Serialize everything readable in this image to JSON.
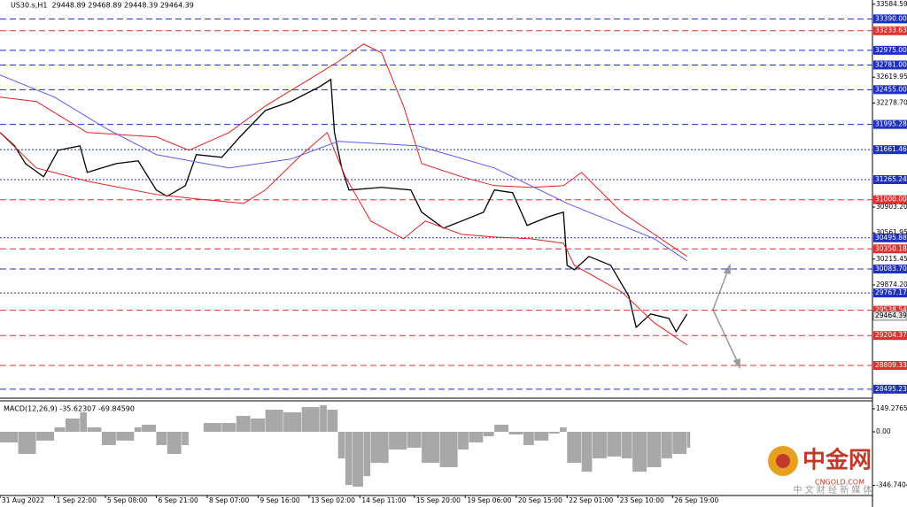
{
  "chart_data": [
    {
      "type": "line",
      "title": "US30.s,H1  29448.89 29468.89 29448.39 29464.39",
      "xlim": [
        0,
        240
      ],
      "ylim": [
        28400,
        33640
      ],
      "xticks": [
        {
          "value": 0,
          "label": "31 Aug 2022"
        },
        {
          "value": 15,
          "label": "1 Sep 22:00"
        },
        {
          "value": 29,
          "label": "5 Sep 08:00"
        },
        {
          "value": 43,
          "label": "6 Sep 21:00"
        },
        {
          "value": 57,
          "label": "8 Sep 07:00"
        },
        {
          "value": 71,
          "label": "9 Sep 16:00"
        },
        {
          "value": 85,
          "label": "13 Sep 02:00"
        },
        {
          "value": 99,
          "label": "14 Sep 11:00"
        },
        {
          "value": 114,
          "label": "15 Sep 20:00"
        },
        {
          "value": 128,
          "label": "19 Sep 06:00"
        },
        {
          "value": 142,
          "label": "20 Sep 15:00"
        },
        {
          "value": 156,
          "label": "22 Sep 01:00"
        },
        {
          "value": 170,
          "label": "23 Sep 10:00"
        },
        {
          "value": 185,
          "label": "26 Sep 19:00"
        }
      ],
      "yticks": [
        {
          "value": 33584.59,
          "label": "33584.59"
        },
        {
          "value": 32619.95,
          "label": "32619.95"
        },
        {
          "value": 32278.7,
          "label": "32278.70"
        },
        {
          "value": 30903.2,
          "label": "30903.20"
        },
        {
          "value": 30561.95,
          "label": "30561.95"
        },
        {
          "value": 30215.45,
          "label": "30215.45"
        },
        {
          "value": 29874.2,
          "label": "29874.20"
        }
      ],
      "levels": [
        {
          "value": 33390,
          "label": "33390.00",
          "color": "#1f2fbf",
          "style": "dashed"
        },
        {
          "value": 33233.63,
          "label": "33233.63",
          "color": "#e03030",
          "style": "dashed"
        },
        {
          "value": 32975,
          "label": "32975.00",
          "color": "#1f2fbf",
          "style": "dashed"
        },
        {
          "value": 32781,
          "label": "32781.00",
          "color": "#1f2fbf",
          "style": "dashed"
        },
        {
          "value": 32455,
          "label": "32455.00",
          "color": "#1f2fbf",
          "style": "dashed"
        },
        {
          "value": 31995.28,
          "label": "31995.28",
          "color": "#1f2fbf",
          "style": "dashed"
        },
        {
          "value": 31661.46,
          "label": "31661.46",
          "color": "#1f2fbf",
          "style": "dotted"
        },
        {
          "value": 31265.24,
          "label": "31265.24",
          "color": "#1f2fbf",
          "style": "dotted"
        },
        {
          "value": 31000,
          "label": "31000.00",
          "color": "#e03030",
          "style": "dashed"
        },
        {
          "value": 30495.88,
          "label": "30495.88",
          "color": "#1f2fbf",
          "style": "dotted"
        },
        {
          "value": 30350.18,
          "label": "30350.18",
          "color": "#e03030",
          "style": "dashed"
        },
        {
          "value": 30083.7,
          "label": "30083.70",
          "color": "#1f2fbf",
          "style": "dashed"
        },
        {
          "value": 29767.17,
          "label": "29767.17",
          "color": "#1f2fbf",
          "style": "dotted"
        },
        {
          "value": 29538.54,
          "label": "29538.54",
          "color": "#e03030",
          "style": "dashed"
        },
        {
          "value": 29204.37,
          "label": "29204.37",
          "color": "#e03030",
          "style": "dashed"
        },
        {
          "value": 28809.33,
          "label": "28809.33",
          "color": "#e03030",
          "style": "dashed"
        },
        {
          "value": 28495.23,
          "label": "28495.23",
          "color": "#1f2fbf",
          "style": "dashed"
        }
      ],
      "current": {
        "value": 29464.39,
        "label": "29464.39"
      },
      "series": [
        {
          "color": "#000000",
          "x": [
            0,
            4,
            7,
            12,
            16,
            22,
            24,
            32,
            38,
            43,
            46,
            51,
            54,
            61,
            66,
            73,
            80,
            88,
            91,
            92,
            94,
            96,
            105,
            113,
            116,
            122,
            127,
            133,
            136,
            141,
            145,
            151,
            155,
            156,
            158,
            162,
            168,
            173,
            175,
            179,
            184,
            186,
            189
          ],
          "values": [
            31888,
            31712,
            31478,
            31303,
            31654,
            31712,
            31361,
            31478,
            31514,
            31128,
            31046,
            31186,
            31596,
            31560,
            31830,
            32180,
            32298,
            32496,
            32590,
            31888,
            31420,
            31128,
            31163,
            31128,
            30835,
            30624,
            30718,
            30835,
            31128,
            31093,
            30660,
            30777,
            30835,
            30133,
            30074,
            30250,
            30133,
            29723,
            29314,
            29490,
            29431,
            29256,
            29490
          ]
        },
        {
          "color": "#e02020",
          "x": [
            0,
            10,
            24,
            43,
            52,
            63,
            73,
            85,
            93,
            100,
            105,
            111,
            116,
            127,
            136,
            146,
            155,
            160,
            171,
            180,
            189
          ],
          "values": [
            32356,
            32298,
            31888,
            31830,
            31654,
            31888,
            32239,
            32590,
            32824,
            33058,
            32941,
            32239,
            31478,
            31303,
            31186,
            31163,
            31186,
            31361,
            30835,
            30542,
            30250
          ]
        },
        {
          "color": "#e02020",
          "x": [
            0,
            10,
            24,
            43,
            54,
            67,
            73,
            83,
            90,
            95,
            102,
            111,
            117,
            127,
            136,
            146,
            155,
            158,
            171,
            180,
            189
          ],
          "values": [
            31888,
            31420,
            31245,
            31069,
            31011,
            30952,
            31128,
            31596,
            31888,
            31303,
            30718,
            30484,
            30718,
            30542,
            30507,
            30484,
            30425,
            30133,
            29782,
            29373,
            29080
          ]
        },
        {
          "color": "#5a5aee",
          "x": [
            0,
            15,
            29,
            43,
            63,
            80,
            93,
            115,
            136,
            156,
            171,
            180,
            189
          ],
          "values": [
            32649,
            32356,
            31947,
            31596,
            31420,
            31537,
            31771,
            31712,
            31420,
            30952,
            30660,
            30484,
            30191
          ]
        }
      ]
    },
    {
      "type": "bar",
      "title": "MACD(12,26,9) -35.62307 -69.84590",
      "color": "#a8a8a8",
      "xlim": [
        0,
        240
      ],
      "ylim": [
        -412,
        189
      ],
      "yticks": [
        {
          "value": 149.27659,
          "label": "149.27659"
        },
        {
          "value": 0,
          "label": "0.00"
        },
        {
          "value": -346.74041,
          "label": "-346.74041"
        }
      ],
      "x": [
        0,
        5,
        10,
        15,
        18,
        22,
        24,
        28,
        32,
        37,
        39,
        43,
        46,
        50,
        52,
        56,
        61,
        65,
        69,
        73,
        78,
        83,
        88,
        90,
        93,
        95,
        97,
        100,
        102,
        107,
        112,
        116,
        121,
        126,
        129,
        133,
        136,
        140,
        144,
        147,
        151,
        154,
        156,
        160,
        163,
        167,
        171,
        174,
        178,
        182,
        185,
        189
      ],
      "values": [
        -69,
        -143,
        -57,
        29,
        86,
        126,
        29,
        -86,
        -57,
        29,
        46,
        -86,
        -143,
        -86,
        0,
        57,
        57,
        103,
        86,
        143,
        126,
        160,
        172,
        143,
        -172,
        -344,
        -355,
        -287,
        -201,
        -115,
        -103,
        -201,
        -229,
        -115,
        -69,
        -29,
        46,
        -17,
        -86,
        -57,
        -11,
        29,
        -201,
        -258,
        -172,
        -160,
        -172,
        -258,
        -229,
        -172,
        -143,
        -103
      ]
    }
  ],
  "logo": {
    "name": "中金网",
    "site": "CNGOLD.COM",
    "tagline": "中 文 财 经 新 媒 体"
  }
}
